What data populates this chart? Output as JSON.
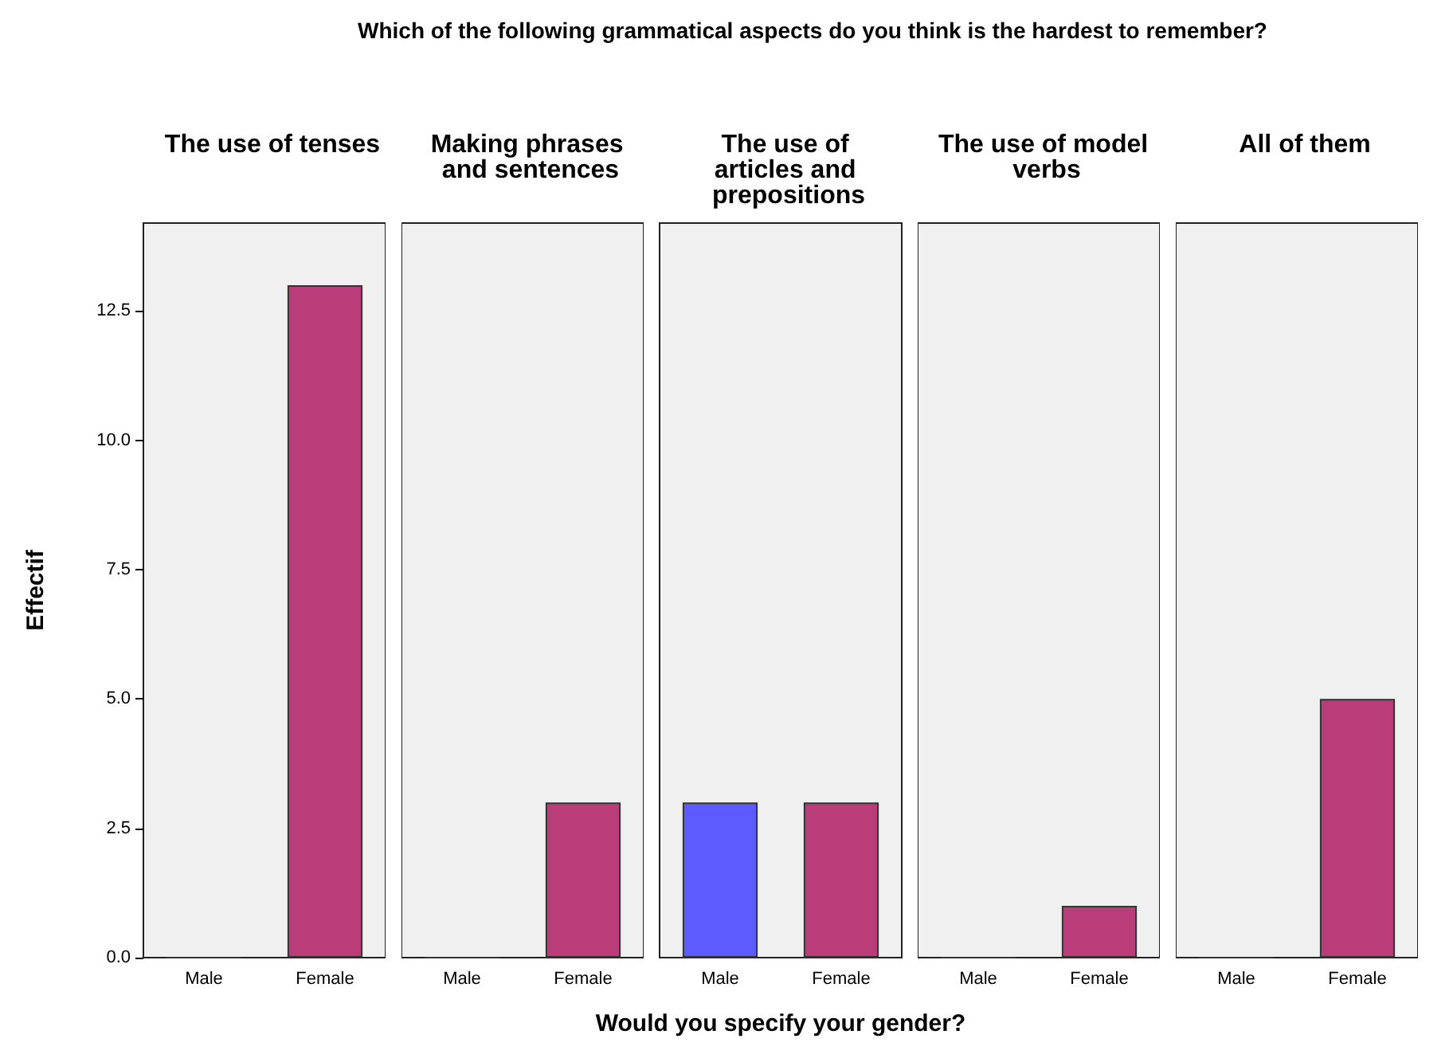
{
  "chart_data": [
    {
      "type": "bar",
      "title": "The use of tenses",
      "annotations": [
        "Which of the following grammatical aspects do you think is the hardest to remember?"
      ],
      "ylabel": "Effectif",
      "categories": [
        "Male",
        "Female"
      ],
      "values": [
        0,
        13
      ],
      "colors": [
        "#5b5bff",
        "#b93d78"
      ],
      "ylim": [
        0,
        14.2
      ],
      "yticks": [
        {
          "value": 0,
          "label": "0.0"
        },
        {
          "value": 2.5,
          "label": "2.5"
        },
        {
          "value": 5,
          "label": "5.0"
        },
        {
          "value": 7.5,
          "label": "7.5"
        },
        {
          "value": 10,
          "label": "10.0"
        },
        {
          "value": 12.5,
          "label": "12.5"
        }
      ]
    },
    {
      "type": "bar",
      "title": "Making phrases and sentences",
      "categories": [
        "Male",
        "Female"
      ],
      "values": [
        0,
        3
      ],
      "colors": [
        "#5b5bff",
        "#b93d78"
      ],
      "ylim": [
        0,
        14.2
      ],
      "tick_labels": "x"
    },
    {
      "type": "bar",
      "title": "The use of articles and prepositions",
      "xlabel": "Would you specify your gender?",
      "categories": [
        "Male",
        "Female"
      ],
      "values": [
        3,
        3
      ],
      "colors": [
        "#5b5bff",
        "#b93d78"
      ],
      "ylim": [
        0,
        14.2
      ],
      "tick_labels": "x"
    },
    {
      "type": "bar",
      "title": "The use of model verbs",
      "categories": [
        "Male",
        "Female"
      ],
      "values": [
        0,
        1
      ],
      "colors": [
        "#5b5bff",
        "#b93d78"
      ],
      "ylim": [
        0,
        14.2
      ],
      "tick_labels": "x"
    },
    {
      "type": "bar",
      "title": "All of them",
      "categories": [
        "Male",
        "Female"
      ],
      "values": [
        0,
        5
      ],
      "colors": [
        "#5b5bff",
        "#b93d78"
      ],
      "ylim": [
        0,
        14.2
      ],
      "tick_labels": "x"
    }
  ]
}
